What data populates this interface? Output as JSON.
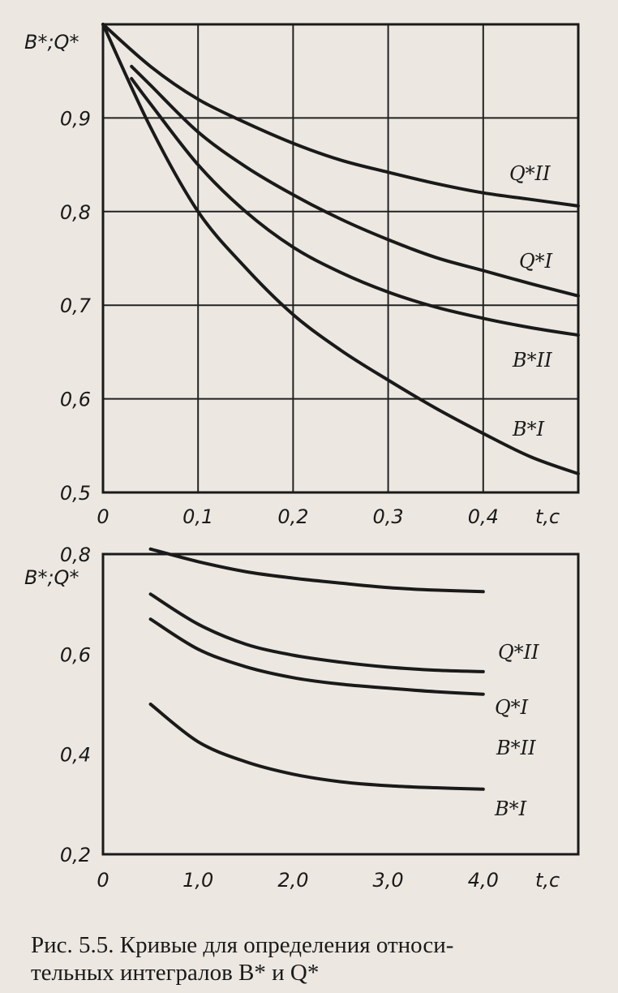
{
  "chart_data": [
    {
      "type": "line",
      "ylabel": "B*;Q*",
      "xlabel": "t,c",
      "xlim": [
        0,
        0.5
      ],
      "ylim": [
        0.5,
        1.0
      ],
      "x_ticks": [
        "0",
        "0,1",
        "0,2",
        "0,3",
        "0,4"
      ],
      "y_ticks": [
        "0,9",
        "0,8",
        "0,7",
        "0,6",
        "0,5"
      ],
      "grid": true,
      "series": [
        {
          "name": "Q*II",
          "x": [
            0,
            0.05,
            0.1,
            0.15,
            0.2,
            0.25,
            0.3,
            0.35,
            0.4,
            0.45,
            0.5
          ],
          "y": [
            1.0,
            0.955,
            0.92,
            0.895,
            0.873,
            0.855,
            0.842,
            0.83,
            0.82,
            0.813,
            0.806
          ]
        },
        {
          "name": "Q*I",
          "x": [
            0.03,
            0.05,
            0.1,
            0.15,
            0.2,
            0.25,
            0.3,
            0.35,
            0.4,
            0.45,
            0.5
          ],
          "y": [
            0.955,
            0.935,
            0.885,
            0.848,
            0.818,
            0.792,
            0.77,
            0.751,
            0.737,
            0.723,
            0.71
          ]
        },
        {
          "name": "B*II",
          "x": [
            0.03,
            0.05,
            0.1,
            0.15,
            0.2,
            0.25,
            0.3,
            0.35,
            0.4,
            0.45,
            0.5
          ],
          "y": [
            0.942,
            0.915,
            0.85,
            0.8,
            0.762,
            0.735,
            0.714,
            0.698,
            0.686,
            0.676,
            0.668
          ]
        },
        {
          "name": "B*I",
          "x": [
            0,
            0.05,
            0.1,
            0.15,
            0.2,
            0.25,
            0.3,
            0.35,
            0.4,
            0.45,
            0.5
          ],
          "y": [
            1.0,
            0.89,
            0.8,
            0.74,
            0.69,
            0.652,
            0.62,
            0.59,
            0.563,
            0.538,
            0.52
          ]
        }
      ]
    },
    {
      "type": "line",
      "ylabel": "B*;Q*",
      "xlabel": "t,c",
      "xlim": [
        0,
        5.0
      ],
      "ylim": [
        0.2,
        0.8
      ],
      "x_ticks": [
        "0",
        "1,0",
        "2,0",
        "3,0",
        "4,0"
      ],
      "y_ticks": [
        "0,8",
        "0,6",
        "0,4",
        "0,2"
      ],
      "grid": false,
      "series": [
        {
          "name": "Q*II",
          "x": [
            0.5,
            1.0,
            1.5,
            2.0,
            2.5,
            3.0,
            3.5,
            4.0
          ],
          "y": [
            0.81,
            0.785,
            0.765,
            0.752,
            0.742,
            0.733,
            0.728,
            0.725
          ]
        },
        {
          "name": "Q*I",
          "x": [
            0.5,
            1.0,
            1.5,
            2.0,
            2.5,
            3.0,
            3.5,
            4.0
          ],
          "y": [
            0.72,
            0.66,
            0.62,
            0.598,
            0.584,
            0.574,
            0.568,
            0.565
          ]
        },
        {
          "name": "B*II",
          "x": [
            0.5,
            1.0,
            1.5,
            2.0,
            2.5,
            3.0,
            3.5,
            4.0
          ],
          "y": [
            0.67,
            0.61,
            0.575,
            0.553,
            0.54,
            0.532,
            0.525,
            0.52
          ]
        },
        {
          "name": "B*I",
          "x": [
            0.5,
            1.0,
            1.5,
            2.0,
            2.5,
            3.0,
            3.5,
            4.0
          ],
          "y": [
            0.5,
            0.425,
            0.385,
            0.36,
            0.345,
            0.337,
            0.333,
            0.33
          ]
        }
      ]
    }
  ],
  "curve_labels": {
    "top": [
      "Q*II",
      "Q*I",
      "B*II",
      "B*I"
    ],
    "bottom": [
      "Q*II",
      "Q*I",
      "B*II",
      "B*I"
    ]
  },
  "caption": {
    "line1": "Рис. 5.5. Кривые для определения относи-",
    "line2": "тельных интегралов B* и Q*"
  }
}
